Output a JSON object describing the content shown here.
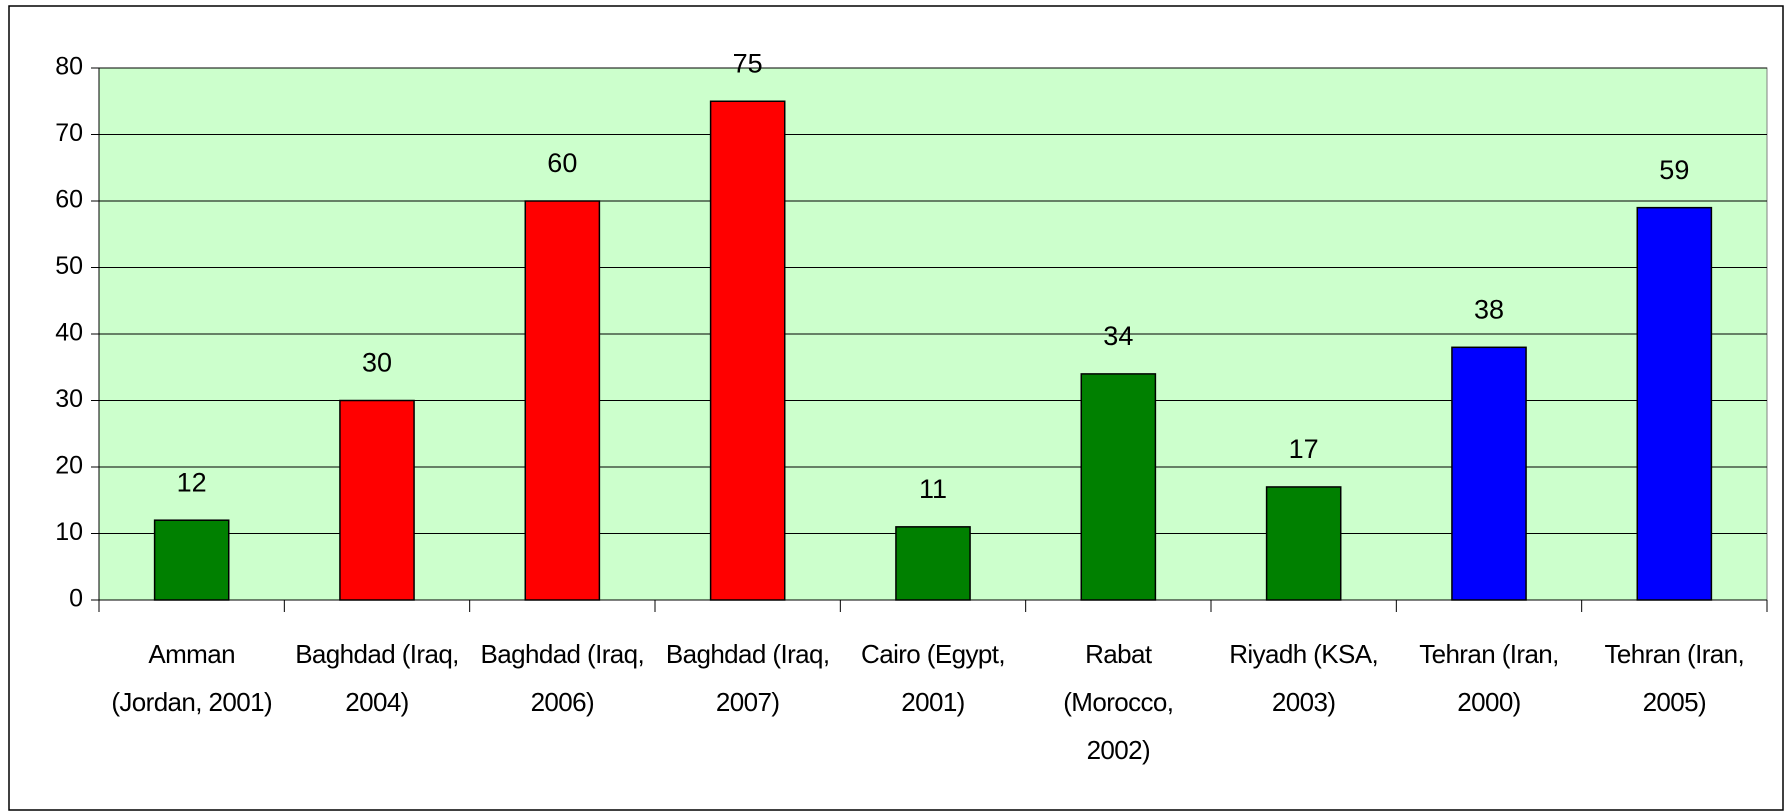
{
  "chart_data": {
    "type": "bar",
    "categories": [
      "Amman (Jordan, 2001)",
      "Baghdad (Iraq, 2004)",
      "Baghdad (Iraq, 2006)",
      "Baghdad (Iraq, 2007)",
      "Cairo (Egypt, 2001)",
      "Rabat (Morocco, 2002)",
      "Riyadh (KSA, 2003)",
      "Tehran (Iran, 2000)",
      "Tehran (Iran, 2005)"
    ],
    "values": [
      12,
      30,
      60,
      75,
      11,
      34,
      17,
      38,
      59
    ],
    "colors": [
      "#008000",
      "#ff0000",
      "#ff0000",
      "#ff0000",
      "#008000",
      "#008000",
      "#008000",
      "#0000ff",
      "#0000ff"
    ],
    "ylim": [
      0,
      80
    ],
    "yticks": [
      0,
      10,
      20,
      30,
      40,
      50,
      60,
      70,
      80
    ],
    "grid": true,
    "plot_background": "#ccffcc"
  }
}
